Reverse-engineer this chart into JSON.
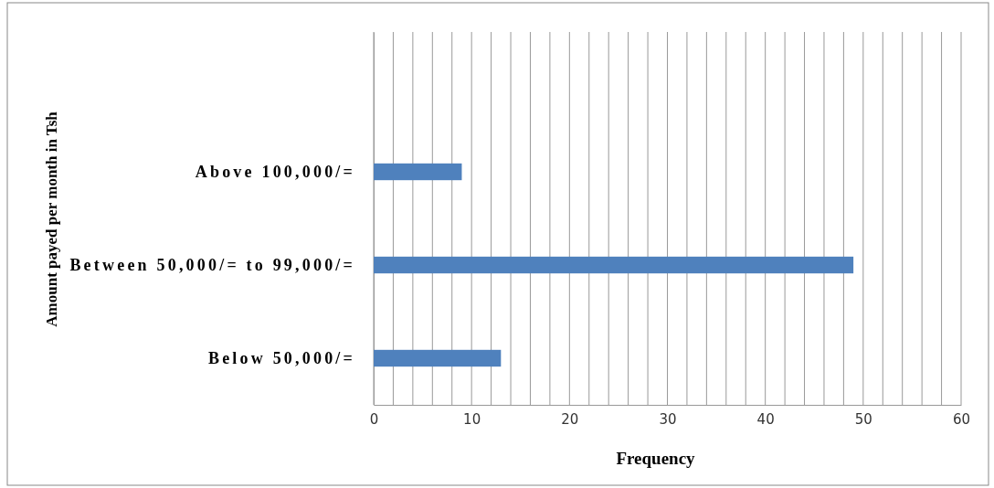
{
  "chart_data": {
    "type": "bar",
    "orientation": "horizontal",
    "xlabel": "Frequency",
    "ylabel": "Amount payed per month in Tsh",
    "categories": [
      null,
      "Above 100,000/=",
      "Between 50,000/= to 99,000/=",
      "Below 50,000/="
    ],
    "values": [
      null,
      9,
      49,
      13
    ],
    "color": "#4f81bd",
    "xlim": [
      0,
      60
    ],
    "xticks": [
      0,
      {
        "value": 2,
        "label": null
      },
      {
        "value": 4,
        "label": null
      },
      {
        "value": 6,
        "label": null
      },
      {
        "value": 8,
        "label": null
      },
      10,
      {
        "value": 12,
        "label": null
      },
      {
        "value": 14,
        "label": null
      },
      {
        "value": 16,
        "label": null
      },
      {
        "value": 18,
        "label": null
      },
      20,
      {
        "value": 22,
        "label": null
      },
      {
        "value": 24,
        "label": null
      },
      {
        "value": 26,
        "label": null
      },
      {
        "value": 28,
        "label": null
      },
      30,
      {
        "value": 32,
        "label": null
      },
      {
        "value": 34,
        "label": null
      },
      {
        "value": 36,
        "label": null
      },
      {
        "value": 38,
        "label": null
      },
      40,
      {
        "value": 42,
        "label": null
      },
      {
        "value": 44,
        "label": null
      },
      {
        "value": 46,
        "label": null
      },
      {
        "value": 48,
        "label": null
      },
      50,
      {
        "value": 52,
        "label": null
      },
      {
        "value": 54,
        "label": null
      },
      {
        "value": 56,
        "label": null
      },
      {
        "value": 58,
        "label": null
      },
      60
    ],
    "grid": "x"
  }
}
